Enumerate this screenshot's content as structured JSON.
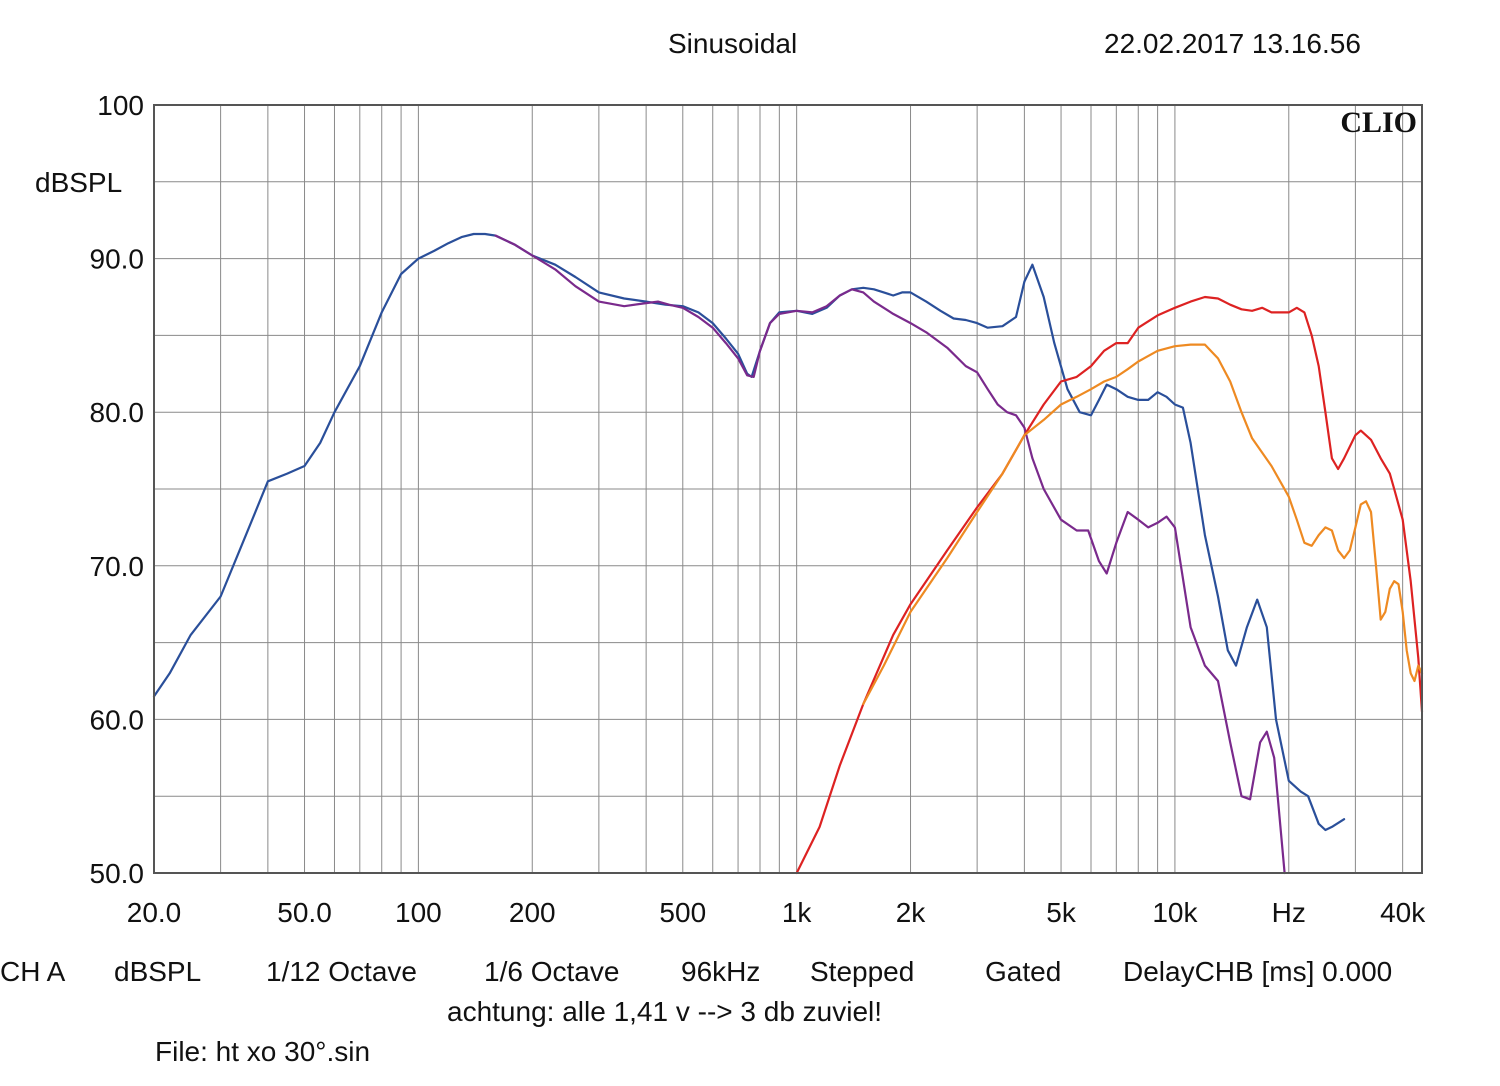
{
  "header": {
    "title": "Sinusoidal",
    "timestamp": "22.02.2017 13.16.56"
  },
  "brand": "CLIO",
  "footer": {
    "settings": [
      "CH A",
      "dBSPL",
      "1/12 Octave",
      "1/6 Octave",
      "96kHz",
      "Stepped",
      "Gated",
      "DelayCHB [ms] 0.000"
    ],
    "note": "achtung: alle 1,41 v --> 3 db zuviel!",
    "file": "File: ht xo 30°.sin"
  },
  "colors": {
    "grid": "#8a8a8a",
    "frame": "#555555",
    "blue": "#2a4f9a",
    "purple": "#7a2a8c",
    "red": "#dd2222",
    "orange": "#ee8a22"
  },
  "chart_data": {
    "type": "line",
    "xscale": "log",
    "xlim": [
      20,
      45000
    ],
    "ylim": [
      50,
      100
    ],
    "ylabel": "dBSPL",
    "xunit_label": "Hz",
    "y_ticks": [
      {
        "v": 100,
        "label": "100"
      },
      {
        "v": 90,
        "label": "90.0"
      },
      {
        "v": 80,
        "label": "80.0"
      },
      {
        "v": 70,
        "label": "70.0"
      },
      {
        "v": 60,
        "label": "60.0"
      },
      {
        "v": 50,
        "label": "50.0"
      }
    ],
    "x_ticks": [
      {
        "v": 20,
        "label": "20.0"
      },
      {
        "v": 50,
        "label": "50.0"
      },
      {
        "v": 100,
        "label": "100"
      },
      {
        "v": 200,
        "label": "200"
      },
      {
        "v": 500,
        "label": "500"
      },
      {
        "v": 1000,
        "label": "1k"
      },
      {
        "v": 2000,
        "label": "2k"
      },
      {
        "v": 5000,
        "label": "5k"
      },
      {
        "v": 10000,
        "label": "10k"
      },
      {
        "v": 20000,
        "label": "Hz"
      },
      {
        "v": 40000,
        "label": "40k"
      }
    ],
    "grid": true,
    "series": [
      {
        "color": "#2a4f9a",
        "points": [
          [
            20,
            61.5
          ],
          [
            22,
            63
          ],
          [
            25,
            65.5
          ],
          [
            30,
            68
          ],
          [
            35,
            72
          ],
          [
            40,
            75.5
          ],
          [
            45,
            76
          ],
          [
            50,
            76.5
          ],
          [
            55,
            78
          ],
          [
            60,
            80
          ],
          [
            70,
            83
          ],
          [
            80,
            86.5
          ],
          [
            90,
            89
          ],
          [
            100,
            90
          ],
          [
            110,
            90.5
          ],
          [
            120,
            91
          ],
          [
            130,
            91.4
          ],
          [
            140,
            91.6
          ],
          [
            150,
            91.6
          ],
          [
            160,
            91.5
          ],
          [
            180,
            90.9
          ],
          [
            200,
            90.2
          ],
          [
            230,
            89.6
          ],
          [
            260,
            88.8
          ],
          [
            300,
            87.8
          ],
          [
            350,
            87.4
          ],
          [
            400,
            87.2
          ],
          [
            450,
            87.0
          ],
          [
            500,
            86.9
          ],
          [
            550,
            86.5
          ],
          [
            600,
            85.8
          ],
          [
            650,
            84.8
          ],
          [
            700,
            83.8
          ],
          [
            740,
            82.5
          ],
          [
            760,
            82.3
          ],
          [
            800,
            84
          ],
          [
            850,
            85.8
          ],
          [
            900,
            86.5
          ],
          [
            1000,
            86.6
          ],
          [
            1100,
            86.4
          ],
          [
            1200,
            86.8
          ],
          [
            1300,
            87.6
          ],
          [
            1400,
            88.0
          ],
          [
            1500,
            88.1
          ],
          [
            1600,
            88.0
          ],
          [
            1700,
            87.8
          ],
          [
            1800,
            87.6
          ],
          [
            1900,
            87.8
          ],
          [
            2000,
            87.8
          ],
          [
            2200,
            87.2
          ],
          [
            2400,
            86.6
          ],
          [
            2600,
            86.1
          ],
          [
            2800,
            86.0
          ],
          [
            3000,
            85.8
          ],
          [
            3200,
            85.5
          ],
          [
            3500,
            85.6
          ],
          [
            3800,
            86.2
          ],
          [
            4000,
            88.5
          ],
          [
            4200,
            89.6
          ],
          [
            4500,
            87.5
          ],
          [
            4800,
            84.5
          ],
          [
            5200,
            81.5
          ],
          [
            5600,
            80.0
          ],
          [
            6000,
            79.8
          ],
          [
            6300,
            80.8
          ],
          [
            6600,
            81.8
          ],
          [
            7000,
            81.5
          ],
          [
            7500,
            81.0
          ],
          [
            8000,
            80.8
          ],
          [
            8500,
            80.8
          ],
          [
            9000,
            81.3
          ],
          [
            9500,
            81.0
          ],
          [
            10000,
            80.5
          ],
          [
            10500,
            80.3
          ],
          [
            11000,
            78
          ],
          [
            12000,
            72
          ],
          [
            13000,
            68
          ],
          [
            13800,
            64.5
          ],
          [
            14500,
            63.5
          ],
          [
            15500,
            66
          ],
          [
            16500,
            67.8
          ],
          [
            17500,
            66
          ],
          [
            18500,
            60
          ],
          [
            20000,
            56
          ],
          [
            21500,
            55.3
          ],
          [
            22500,
            55.0
          ],
          [
            24000,
            53.2
          ],
          [
            25000,
            52.8
          ],
          [
            26000,
            53.0
          ],
          [
            28000,
            53.5
          ]
        ]
      },
      {
        "color": "#7a2a8c",
        "points": [
          [
            160,
            91.5
          ],
          [
            180,
            90.9
          ],
          [
            200,
            90.2
          ],
          [
            230,
            89.3
          ],
          [
            260,
            88.2
          ],
          [
            300,
            87.2
          ],
          [
            350,
            86.9
          ],
          [
            400,
            87.1
          ],
          [
            430,
            87.2
          ],
          [
            460,
            87.0
          ],
          [
            500,
            86.8
          ],
          [
            550,
            86.2
          ],
          [
            600,
            85.5
          ],
          [
            650,
            84.5
          ],
          [
            700,
            83.5
          ],
          [
            740,
            82.4
          ],
          [
            770,
            82.3
          ],
          [
            800,
            84
          ],
          [
            850,
            85.8
          ],
          [
            900,
            86.4
          ],
          [
            1000,
            86.6
          ],
          [
            1100,
            86.5
          ],
          [
            1200,
            86.9
          ],
          [
            1300,
            87.6
          ],
          [
            1400,
            88.0
          ],
          [
            1500,
            87.8
          ],
          [
            1600,
            87.2
          ],
          [
            1800,
            86.4
          ],
          [
            2000,
            85.8
          ],
          [
            2200,
            85.2
          ],
          [
            2500,
            84.2
          ],
          [
            2800,
            83.0
          ],
          [
            3000,
            82.6
          ],
          [
            3200,
            81.5
          ],
          [
            3400,
            80.5
          ],
          [
            3600,
            80.0
          ],
          [
            3800,
            79.8
          ],
          [
            4000,
            79.0
          ],
          [
            4200,
            77.0
          ],
          [
            4500,
            75.0
          ],
          [
            5000,
            73.0
          ],
          [
            5500,
            72.3
          ],
          [
            5900,
            72.3
          ],
          [
            6300,
            70.3
          ],
          [
            6600,
            69.5
          ],
          [
            7000,
            71.5
          ],
          [
            7500,
            73.5
          ],
          [
            8000,
            73.0
          ],
          [
            8500,
            72.5
          ],
          [
            9000,
            72.8
          ],
          [
            9500,
            73.2
          ],
          [
            10000,
            72.5
          ],
          [
            11000,
            66
          ],
          [
            12000,
            63.5
          ],
          [
            13000,
            62.5
          ],
          [
            14000,
            58.5
          ],
          [
            15000,
            55
          ],
          [
            15800,
            54.8
          ],
          [
            16800,
            58.5
          ],
          [
            17500,
            59.2
          ],
          [
            18300,
            57.5
          ],
          [
            19500,
            50
          ]
        ]
      },
      {
        "color": "#dd2222",
        "points": [
          [
            1000,
            50
          ],
          [
            1150,
            53
          ],
          [
            1300,
            57
          ],
          [
            1500,
            61
          ],
          [
            1800,
            65.5
          ],
          [
            2000,
            67.5
          ],
          [
            2500,
            71
          ],
          [
            3000,
            73.8
          ],
          [
            3500,
            76.0
          ],
          [
            4000,
            78.5
          ],
          [
            4500,
            80.5
          ],
          [
            5000,
            82.0
          ],
          [
            5500,
            82.3
          ],
          [
            6000,
            83.0
          ],
          [
            6500,
            84.0
          ],
          [
            7000,
            84.5
          ],
          [
            7500,
            84.5
          ],
          [
            8000,
            85.5
          ],
          [
            9000,
            86.3
          ],
          [
            10000,
            86.8
          ],
          [
            11000,
            87.2
          ],
          [
            12000,
            87.5
          ],
          [
            13000,
            87.4
          ],
          [
            14000,
            87.0
          ],
          [
            15000,
            86.7
          ],
          [
            16000,
            86.6
          ],
          [
            17000,
            86.8
          ],
          [
            18000,
            86.5
          ],
          [
            19000,
            86.5
          ],
          [
            20000,
            86.5
          ],
          [
            21000,
            86.8
          ],
          [
            22000,
            86.5
          ],
          [
            23000,
            85
          ],
          [
            24000,
            83
          ],
          [
            25000,
            80
          ],
          [
            26000,
            77
          ],
          [
            27000,
            76.3
          ],
          [
            28000,
            77
          ],
          [
            30000,
            78.5
          ],
          [
            31000,
            78.8
          ],
          [
            33000,
            78.2
          ],
          [
            35000,
            77
          ],
          [
            37000,
            76
          ],
          [
            38000,
            75
          ],
          [
            40000,
            73
          ],
          [
            42000,
            69
          ],
          [
            44000,
            64
          ],
          [
            45000,
            60.5
          ]
        ]
      },
      {
        "color": "#ee8a22",
        "points": [
          [
            1500,
            61
          ],
          [
            1700,
            63.5
          ],
          [
            2000,
            67
          ],
          [
            2500,
            70.5
          ],
          [
            3000,
            73.5
          ],
          [
            3500,
            76.0
          ],
          [
            4000,
            78.5
          ],
          [
            4500,
            79.5
          ],
          [
            5000,
            80.5
          ],
          [
            5500,
            81.0
          ],
          [
            6000,
            81.5
          ],
          [
            6500,
            82.0
          ],
          [
            7000,
            82.3
          ],
          [
            7500,
            82.8
          ],
          [
            8000,
            83.3
          ],
          [
            9000,
            84.0
          ],
          [
            10000,
            84.3
          ],
          [
            11000,
            84.4
          ],
          [
            12000,
            84.4
          ],
          [
            13000,
            83.5
          ],
          [
            14000,
            82
          ],
          [
            15000,
            80
          ],
          [
            16000,
            78.3
          ],
          [
            18000,
            76.5
          ],
          [
            20000,
            74.5
          ],
          [
            21000,
            73
          ],
          [
            22000,
            71.5
          ],
          [
            23000,
            71.3
          ],
          [
            24000,
            72
          ],
          [
            25000,
            72.5
          ],
          [
            26000,
            72.3
          ],
          [
            27000,
            71
          ],
          [
            28000,
            70.5
          ],
          [
            29000,
            71
          ],
          [
            30000,
            72.5
          ],
          [
            31000,
            74
          ],
          [
            32000,
            74.2
          ],
          [
            33000,
            73.5
          ],
          [
            34000,
            70
          ],
          [
            35000,
            66.5
          ],
          [
            36000,
            67
          ],
          [
            37000,
            68.5
          ],
          [
            38000,
            69
          ],
          [
            39000,
            68.8
          ],
          [
            40000,
            67
          ],
          [
            41000,
            64.5
          ],
          [
            42000,
            63
          ],
          [
            43000,
            62.5
          ],
          [
            44000,
            63.5
          ],
          [
            45000,
            63
          ]
        ]
      }
    ]
  }
}
